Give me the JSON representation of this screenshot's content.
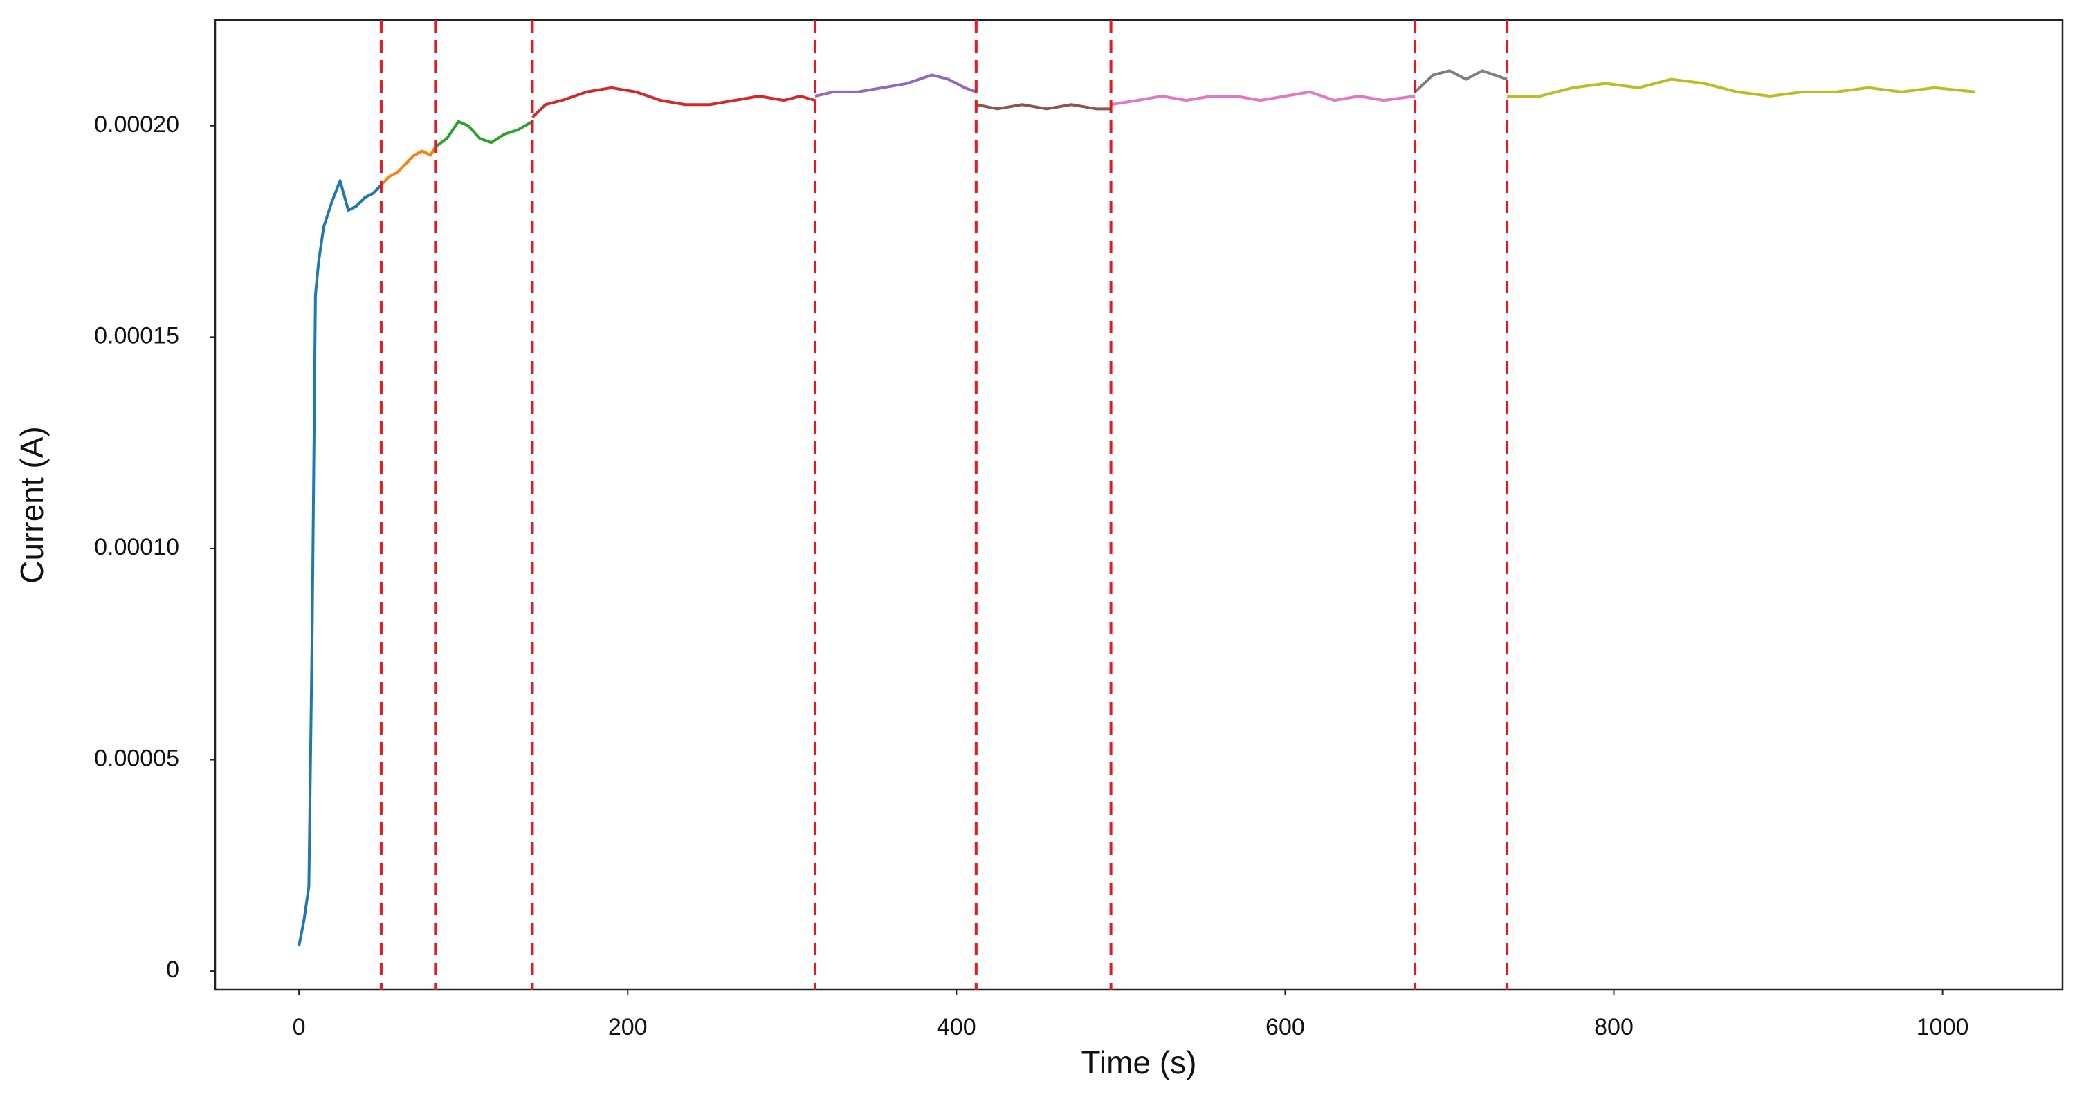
{
  "chart_data": {
    "type": "line",
    "x_label": "Time (s)",
    "y_label": "Current (A)",
    "xlim": [
      -51,
      1073
    ],
    "ylim": [
      -4.4e-06,
      0.000225
    ],
    "xticks": [
      0,
      200,
      400,
      600,
      800,
      1000
    ],
    "yticks": [
      0,
      {
        "value": 5e-05,
        "label": "0.00005"
      },
      {
        "value": 0.0001,
        "label": "0.00010"
      },
      {
        "value": 0.00015,
        "label": "0.00015"
      },
      {
        "value": 0.0002,
        "label": "0.00020"
      }
    ],
    "grid": false,
    "changepoints": [
      50,
      83,
      142,
      314,
      412,
      494,
      679,
      735
    ],
    "changepoint_color": "#e8191e",
    "series": [
      {
        "color": "#1f77b4",
        "x": [
          0,
          3,
          6,
          8,
          10,
          12,
          15,
          20,
          25,
          30,
          35,
          40,
          45,
          50
        ],
        "values": [
          6e-06,
          1.2e-05,
          2e-05,
          8e-05,
          0.00016,
          0.000168,
          0.000176,
          0.000182,
          0.000187,
          0.00018,
          0.000181,
          0.000183,
          0.000184,
          0.000186
        ]
      },
      {
        "color": "#ff7f0e",
        "x": [
          50,
          55,
          60,
          65,
          70,
          75,
          80,
          83
        ],
        "values": [
          0.000186,
          0.000188,
          0.000189,
          0.000191,
          0.000193,
          0.000194,
          0.000193,
          0.000195
        ]
      },
      {
        "color": "#2ca02c",
        "x": [
          83,
          90,
          97,
          103,
          110,
          117,
          125,
          133,
          142
        ],
        "values": [
          0.000195,
          0.000197,
          0.000201,
          0.0002,
          0.000197,
          0.000196,
          0.000198,
          0.000199,
          0.000201
        ]
      },
      {
        "color": "#d62728",
        "x": [
          142,
          150,
          160,
          175,
          190,
          205,
          220,
          235,
          250,
          265,
          280,
          295,
          305,
          314
        ],
        "values": [
          0.000202,
          0.000205,
          0.000206,
          0.000208,
          0.000209,
          0.000208,
          0.000206,
          0.000205,
          0.000205,
          0.000206,
          0.000207,
          0.000206,
          0.000207,
          0.000206
        ]
      },
      {
        "color": "#9467bd",
        "x": [
          314,
          325,
          340,
          355,
          370,
          385,
          395,
          405,
          412
        ],
        "values": [
          0.000207,
          0.000208,
          0.000208,
          0.000209,
          0.00021,
          0.000212,
          0.000211,
          0.000209,
          0.000208
        ]
      },
      {
        "color": "#8c564b",
        "x": [
          412,
          425,
          440,
          455,
          470,
          485,
          494
        ],
        "values": [
          0.000205,
          0.000204,
          0.000205,
          0.000204,
          0.000205,
          0.000204,
          0.000204
        ]
      },
      {
        "color": "#e377c2",
        "x": [
          494,
          510,
          525,
          540,
          555,
          570,
          585,
          600,
          615,
          630,
          645,
          660,
          679
        ],
        "values": [
          0.000205,
          0.000206,
          0.000207,
          0.000206,
          0.000207,
          0.000207,
          0.000206,
          0.000207,
          0.000208,
          0.000206,
          0.000207,
          0.000206,
          0.000207
        ]
      },
      {
        "color": "#7f7f7f",
        "x": [
          679,
          690,
          700,
          710,
          720,
          735
        ],
        "values": [
          0.000208,
          0.000212,
          0.000213,
          0.000211,
          0.000213,
          0.000211
        ]
      },
      {
        "color": "#bcbd22",
        "x": [
          735,
          755,
          775,
          795,
          815,
          835,
          855,
          875,
          895,
          915,
          935,
          955,
          975,
          995,
          1020
        ],
        "values": [
          0.000207,
          0.000207,
          0.000209,
          0.00021,
          0.000209,
          0.000211,
          0.00021,
          0.000208,
          0.000207,
          0.000208,
          0.000208,
          0.000209,
          0.000208,
          0.000209,
          0.000208
        ]
      }
    ]
  }
}
